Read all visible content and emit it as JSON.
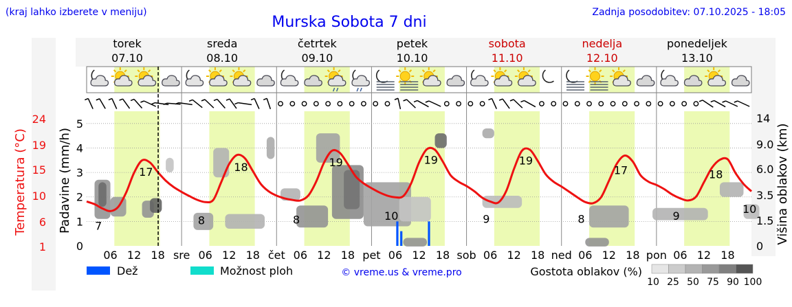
{
  "header": {
    "hint": "(kraj lahko izberete v meniju)",
    "title": "Murska Sobota 7 dni",
    "updated": "Zadnja posodobitev: 07.10.2025 - 18:05"
  },
  "colors": {
    "title": "#0000ee",
    "weekend": "#cc0000",
    "temperature": "#ee1111",
    "daylight": "#ecfab4",
    "rain": "#0055ff",
    "storm": "#11ddcc",
    "grid": "#999999"
  },
  "days": [
    {
      "name": "torek",
      "date": "07.10",
      "weekend": false,
      "tick_prefix": "",
      "icons": [
        "moon-cloud-icon",
        "sun-cloud-icon",
        "sun-cloud-icon",
        "cloud-icon"
      ]
    },
    {
      "name": "sreda",
      "date": "08.10",
      "weekend": false,
      "tick_prefix": "sre",
      "icons": [
        "moon-cloud-icon",
        "sun-cloud-icon",
        "sun-cloud-icon",
        "cloud-icon"
      ]
    },
    {
      "name": "četrtek",
      "date": "09.10",
      "weekend": false,
      "tick_prefix": "čet",
      "icons": [
        "moon-cloud-icon",
        "cloud-icon",
        "sun-cloud-rain-icon",
        "moon-cloud-rain-icon"
      ]
    },
    {
      "name": "petek",
      "date": "10.10",
      "weekend": false,
      "tick_prefix": "pet",
      "icons": [
        "moon-fog-icon",
        "sun-fog-icon",
        "sun-cloud-icon",
        "cloud-icon"
      ]
    },
    {
      "name": "sobota",
      "date": "11.10",
      "weekend": true,
      "tick_prefix": "sob",
      "icons": [
        "moon-cloud-icon",
        "sun-cloud-icon",
        "sun-cloud-icon",
        "moon-icon"
      ]
    },
    {
      "name": "nedelja",
      "date": "12.10",
      "weekend": true,
      "tick_prefix": "ned",
      "icons": [
        "moon-fog-icon",
        "sun-fog-icon",
        "sun-cloud-icon",
        "cloud-icon"
      ]
    },
    {
      "name": "ponedeljek",
      "date": "13.10",
      "weekend": false,
      "tick_prefix": "pon",
      "icons": [
        "moon-cloud-icon",
        "cloud-icon",
        "sun-cloud-icon",
        "cloud-icon"
      ]
    }
  ],
  "chart_data": {
    "type": "line",
    "x_unit": "hours since Tuesday 07.10 00:00",
    "x_range": [
      0,
      168
    ],
    "tick_hours": [
      "06",
      "12",
      "18"
    ],
    "now_hour": 18.08,
    "daylight": [
      [
        7,
        18.5
      ],
      [
        31,
        42.5
      ],
      [
        55,
        66.5
      ],
      [
        79,
        90.5
      ],
      [
        103,
        114.5
      ],
      [
        127,
        138.5
      ],
      [
        151,
        162.5
      ]
    ],
    "y_left_precip": {
      "label": "Padavine (mm/h)",
      "range": [
        0,
        5.5
      ],
      "ticks": [
        "0",
        "1",
        "2",
        "3",
        "4",
        "5"
      ]
    },
    "y_left_temp": {
      "label": "Temperatura (°C)",
      "ticks": [
        "1",
        "6",
        "10",
        "15",
        "19",
        "24"
      ]
    },
    "y_right_cloud": {
      "label": "Višina oblakov (km)",
      "ticks": [
        "0",
        "1.5",
        "3.5",
        "6.0",
        "9.0",
        "14"
      ]
    },
    "series": [
      {
        "kind": "temperature",
        "x": [
          0,
          2,
          4,
          6,
          8,
          10,
          12,
          14,
          16,
          18,
          20,
          22,
          24,
          26,
          28,
          30,
          32,
          34,
          36,
          38,
          40,
          42,
          44,
          46,
          48,
          50,
          52,
          54,
          56,
          58,
          60,
          62,
          64,
          66,
          68,
          70,
          72,
          74,
          76,
          78,
          80,
          82,
          84,
          86,
          88,
          90,
          92,
          94,
          96,
          98,
          100,
          102,
          104,
          106,
          108,
          110,
          112,
          114,
          116,
          118,
          120,
          122,
          124,
          126,
          128,
          130,
          132,
          134,
          136,
          138,
          140,
          142,
          144,
          146,
          148,
          150,
          152,
          154,
          156,
          158,
          160,
          162,
          164,
          166,
          168
        ],
        "y": [
          9.3,
          8.8,
          8.0,
          7.5,
          8.3,
          11.0,
          14.7,
          17.0,
          16.6,
          14.8,
          13.2,
          12.0,
          11.1,
          10.3,
          9.6,
          9.2,
          9.6,
          12.9,
          16.3,
          18.0,
          17.4,
          15.0,
          12.6,
          11.2,
          10.4,
          9.9,
          9.6,
          9.5,
          10.4,
          13.0,
          16.6,
          18.8,
          18.4,
          16.3,
          14.0,
          12.7,
          11.8,
          11.0,
          10.4,
          10.1,
          10.3,
          12.7,
          16.6,
          19.1,
          19.0,
          16.8,
          14.2,
          13.0,
          12.2,
          11.2,
          10.0,
          9.3,
          9.1,
          11.2,
          15.4,
          18.8,
          19.0,
          16.9,
          14.4,
          13.0,
          12.1,
          11.1,
          10.1,
          9.2,
          9.0,
          10.1,
          13.2,
          16.4,
          17.9,
          16.8,
          14.2,
          13.0,
          12.4,
          11.6,
          10.6,
          9.9,
          9.5,
          10.2,
          12.9,
          15.6,
          17.1,
          17.2,
          14.6,
          12.6,
          11.2
        ]
      },
      {
        "kind": "precipitation",
        "x": [
          78.5,
          79.5,
          86.5
        ],
        "values": [
          1.0,
          0.6,
          1.0
        ]
      }
    ],
    "temp_labels": [
      {
        "x": 3,
        "text": "7"
      },
      {
        "x": 15,
        "text": "17"
      },
      {
        "x": 29,
        "text": "8"
      },
      {
        "x": 39,
        "text": "18"
      },
      {
        "x": 53,
        "text": "8"
      },
      {
        "x": 63,
        "text": "19"
      },
      {
        "x": 77,
        "text": "10"
      },
      {
        "x": 87,
        "text": "19"
      },
      {
        "x": 101,
        "text": "9"
      },
      {
        "x": 111,
        "text": "19"
      },
      {
        "x": 125,
        "text": "8"
      },
      {
        "x": 135,
        "text": "17"
      },
      {
        "x": 149,
        "text": "9"
      },
      {
        "x": 159,
        "text": "18"
      },
      {
        "x": 167.5,
        "text": "10"
      }
    ],
    "cloud_blobs": [
      {
        "x": 2,
        "y": 1.9,
        "w": 4,
        "h": 1.6,
        "density": 55
      },
      {
        "x": 3,
        "y": 2.1,
        "w": 2,
        "h": 1.0,
        "density": 80
      },
      {
        "x": 6,
        "y": 1.6,
        "w": 4,
        "h": 0.8,
        "density": 50
      },
      {
        "x": 14,
        "y": 1.5,
        "w": 3,
        "h": 0.7,
        "density": 55
      },
      {
        "x": 16,
        "y": 1.65,
        "w": 3,
        "h": 0.6,
        "density": 85
      },
      {
        "x": 20,
        "y": 3.3,
        "w": 2,
        "h": 0.6,
        "density": 25
      },
      {
        "x": 27,
        "y": 1.0,
        "w": 5,
        "h": 0.7,
        "density": 45
      },
      {
        "x": 35,
        "y": 1.0,
        "w": 10,
        "h": 0.6,
        "density": 35
      },
      {
        "x": 32,
        "y": 3.4,
        "w": 4,
        "h": 1.2,
        "density": 35
      },
      {
        "x": 45.5,
        "y": 4.0,
        "w": 2,
        "h": 0.9,
        "density": 40
      },
      {
        "x": 49,
        "y": 2.1,
        "w": 5,
        "h": 0.5,
        "density": 35
      },
      {
        "x": 53,
        "y": 1.2,
        "w": 8,
        "h": 0.9,
        "density": 55
      },
      {
        "x": 58,
        "y": 4.0,
        "w": 6,
        "h": 1.2,
        "density": 45
      },
      {
        "x": 62,
        "y": 2.2,
        "w": 8,
        "h": 2.2,
        "density": 60
      },
      {
        "x": 65,
        "y": 2.3,
        "w": 4,
        "h": 1.6,
        "density": 75
      },
      {
        "x": 70,
        "y": 1.7,
        "w": 12,
        "h": 1.8,
        "density": 45
      },
      {
        "x": 79,
        "y": 1.5,
        "w": 8,
        "h": 1.0,
        "density": 25
      },
      {
        "x": 88,
        "y": 4.3,
        "w": 3,
        "h": 0.6,
        "density": 80
      },
      {
        "x": 100,
        "y": 1.8,
        "w": 10,
        "h": 0.5,
        "density": 30
      },
      {
        "x": 100,
        "y": 4.6,
        "w": 3,
        "h": 0.4,
        "density": 40
      },
      {
        "x": 127,
        "y": 1.2,
        "w": 10,
        "h": 0.9,
        "density": 45
      },
      {
        "x": 143,
        "y": 1.3,
        "w": 14,
        "h": 0.5,
        "density": 35
      },
      {
        "x": 160,
        "y": 2.3,
        "w": 6,
        "h": 0.6,
        "density": 35
      },
      {
        "x": 166,
        "y": 1.4,
        "w": 4,
        "h": 0.6,
        "density": 30
      },
      {
        "x": 80,
        "y": 0.15,
        "w": 6,
        "h": 0.35,
        "density": 55
      },
      {
        "x": 126,
        "y": 0.15,
        "w": 6,
        "h": 0.35,
        "density": 55
      }
    ],
    "wind": [
      {
        "x": 1,
        "kind": "barb",
        "angle": 20
      },
      {
        "x": 4,
        "kind": "barb",
        "angle": 25
      },
      {
        "x": 7,
        "kind": "barb",
        "angle": 20
      },
      {
        "x": 10,
        "kind": "barb",
        "angle": 30
      },
      {
        "x": 13,
        "kind": "barb",
        "angle": 35
      },
      {
        "x": 16,
        "kind": "barb",
        "angle": 60
      },
      {
        "x": 19,
        "kind": "barb",
        "angle": 80
      },
      {
        "x": 22,
        "kind": "barb",
        "angle": 85
      },
      {
        "x": 25,
        "kind": "barb",
        "angle": 80
      },
      {
        "x": 28,
        "kind": "barb",
        "angle": 45
      },
      {
        "x": 31,
        "kind": "barb",
        "angle": 40
      },
      {
        "x": 34,
        "kind": "barb",
        "angle": 35
      },
      {
        "x": 37,
        "kind": "barb",
        "angle": 30
      },
      {
        "x": 40,
        "kind": "barb",
        "angle": 80
      },
      {
        "x": 43,
        "kind": "barb",
        "angle": 20
      },
      {
        "x": 46,
        "kind": "barb",
        "angle": 15
      },
      {
        "x": 49,
        "kind": "calm",
        "angle": 0
      },
      {
        "x": 52,
        "kind": "calm",
        "angle": 0
      },
      {
        "x": 55,
        "kind": "calm",
        "angle": 0
      },
      {
        "x": 58,
        "kind": "calm",
        "angle": 0
      },
      {
        "x": 61,
        "kind": "calm",
        "angle": 0
      },
      {
        "x": 64,
        "kind": "calm",
        "angle": 0
      },
      {
        "x": 67,
        "kind": "calm",
        "angle": 0
      },
      {
        "x": 70,
        "kind": "calm",
        "angle": 0
      },
      {
        "x": 73,
        "kind": "calm",
        "angle": 0
      },
      {
        "x": 76,
        "kind": "calm",
        "angle": 0
      },
      {
        "x": 79,
        "kind": "barb",
        "angle": 10
      },
      {
        "x": 82,
        "kind": "barb",
        "angle": 40
      },
      {
        "x": 85,
        "kind": "barb",
        "angle": 55
      },
      {
        "x": 88,
        "kind": "barb",
        "angle": 60
      },
      {
        "x": 91,
        "kind": "calm",
        "angle": 0
      },
      {
        "x": 94,
        "kind": "calm",
        "angle": 0
      },
      {
        "x": 97,
        "kind": "calm",
        "angle": 0
      },
      {
        "x": 100,
        "kind": "calm",
        "angle": 0
      },
      {
        "x": 103,
        "kind": "barb",
        "angle": 20
      },
      {
        "x": 106,
        "kind": "barb",
        "angle": 30
      },
      {
        "x": 109,
        "kind": "barb",
        "angle": 40
      },
      {
        "x": 112,
        "kind": "barb",
        "angle": 55
      },
      {
        "x": 115,
        "kind": "calm",
        "angle": 0
      },
      {
        "x": 118,
        "kind": "calm",
        "angle": 0
      },
      {
        "x": 121,
        "kind": "calm",
        "angle": 0
      },
      {
        "x": 124,
        "kind": "calm",
        "angle": 0
      },
      {
        "x": 127,
        "kind": "calm",
        "angle": 0
      },
      {
        "x": 130,
        "kind": "calm",
        "angle": 0
      },
      {
        "x": 133,
        "kind": "calm",
        "angle": 0
      },
      {
        "x": 136,
        "kind": "calm",
        "angle": 0
      },
      {
        "x": 139,
        "kind": "calm",
        "angle": 0
      },
      {
        "x": 142,
        "kind": "calm",
        "angle": 0
      },
      {
        "x": 145,
        "kind": "calm",
        "angle": 0
      },
      {
        "x": 148,
        "kind": "calm",
        "angle": 0
      },
      {
        "x": 151,
        "kind": "calm",
        "angle": 0
      },
      {
        "x": 154,
        "kind": "calm",
        "angle": 0
      },
      {
        "x": 157,
        "kind": "barb",
        "angle": 50
      },
      {
        "x": 160,
        "kind": "barb",
        "angle": 55
      },
      {
        "x": 163,
        "kind": "barb",
        "angle": 60
      },
      {
        "x": 166,
        "kind": "barb",
        "angle": 60
      }
    ]
  },
  "legend": {
    "rain": "Dež",
    "storm": "Možnost ploh",
    "copyright": "© vreme.us & vreme.pro",
    "density_label": "Gostota oblakov (%)",
    "density_steps": [
      "10",
      "25",
      "50",
      "75",
      "90",
      "100"
    ],
    "density_colors": [
      "#e6e6e6",
      "#cccccc",
      "#b3b3b3",
      "#999999",
      "#7f7f7f",
      "#555555"
    ]
  }
}
